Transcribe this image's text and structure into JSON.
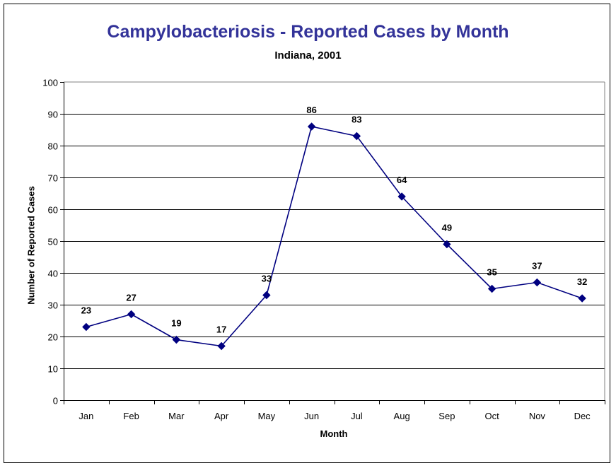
{
  "chart_data": {
    "type": "line",
    "title": "Campylobacteriosis - Reported Cases by Month",
    "subtitle": "Indiana, 2001",
    "xlabel": "Month",
    "ylabel": "Number of Reported Cases",
    "categories": [
      "Jan",
      "Feb",
      "Mar",
      "Apr",
      "May",
      "Jun",
      "Jul",
      "Aug",
      "Sep",
      "Oct",
      "Nov",
      "Dec"
    ],
    "series": [
      {
        "name": "Reported Cases",
        "values": [
          23,
          27,
          19,
          17,
          33,
          86,
          83,
          64,
          49,
          35,
          37,
          32
        ],
        "color": "#000080",
        "marker": "diamond"
      }
    ],
    "ylim": [
      0,
      100
    ],
    "yticks": [
      0,
      10,
      20,
      30,
      40,
      50,
      60,
      70,
      80,
      90,
      100
    ],
    "grid": true,
    "data_labels": true,
    "legend": "none",
    "colors": {
      "title": "#333399",
      "gridline": "#000000",
      "plot_border": "#808080"
    }
  }
}
